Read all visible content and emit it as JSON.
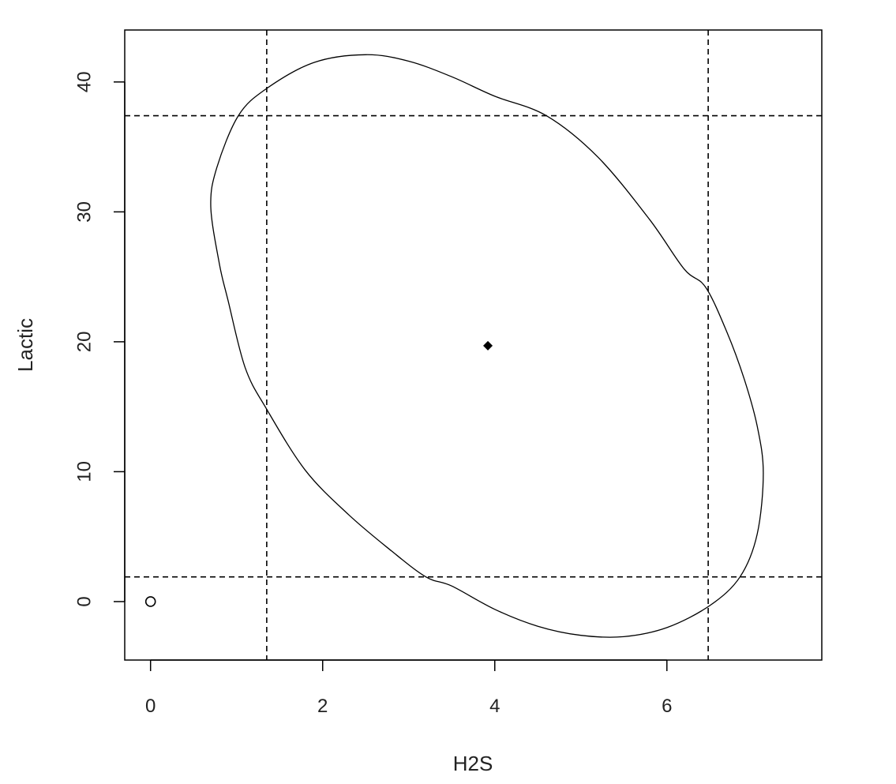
{
  "chart_data": {
    "type": "scatter",
    "title": "",
    "xlabel": "H2S",
    "ylabel": "Lactic",
    "xlim": [
      -0.3,
      7.8
    ],
    "ylim": [
      -4.5,
      44
    ],
    "x_ticks": [
      0,
      2,
      4,
      6
    ],
    "y_ticks": [
      0,
      10,
      20,
      30,
      40
    ],
    "grid": false,
    "points": [
      {
        "x": 0,
        "y": 0,
        "marker": "open-circle"
      },
      {
        "x": 3.92,
        "y": 19.7,
        "marker": "filled-diamond"
      }
    ],
    "ellipse": [
      [
        2.5,
        42.1
      ],
      [
        3.0,
        41.6
      ],
      [
        3.5,
        40.4
      ],
      [
        4.0,
        38.9
      ],
      [
        4.6,
        37.4
      ],
      [
        5.2,
        34.2
      ],
      [
        5.8,
        29.4
      ],
      [
        6.2,
        25.6
      ],
      [
        6.45,
        24.2
      ],
      [
        6.7,
        20.7
      ],
      [
        6.9,
        17.1
      ],
      [
        7.05,
        13.5
      ],
      [
        7.12,
        9.9
      ],
      [
        7.05,
        5.2
      ],
      [
        6.85,
        1.9
      ],
      [
        6.5,
        -0.3
      ],
      [
        6.0,
        -2.0
      ],
      [
        5.5,
        -2.7
      ],
      [
        5.0,
        -2.6
      ],
      [
        4.5,
        -1.9
      ],
      [
        4.0,
        -0.6
      ],
      [
        3.5,
        1.2
      ],
      [
        3.2,
        1.9
      ],
      [
        2.8,
        3.9
      ],
      [
        2.3,
        6.7
      ],
      [
        1.8,
        10.1
      ],
      [
        1.35,
        14.8
      ],
      [
        1.1,
        18.0
      ],
      [
        0.9,
        23.2
      ],
      [
        0.8,
        26.0
      ],
      [
        0.7,
        30.4
      ],
      [
        0.77,
        33.4
      ],
      [
        1.02,
        37.4
      ],
      [
        1.35,
        39.5
      ],
      [
        1.9,
        41.5
      ],
      [
        2.5,
        42.1
      ]
    ],
    "reference_lines": {
      "vertical": [
        1.35,
        6.48
      ],
      "horizontal": [
        1.9,
        37.4
      ],
      "style": "dashed"
    }
  }
}
